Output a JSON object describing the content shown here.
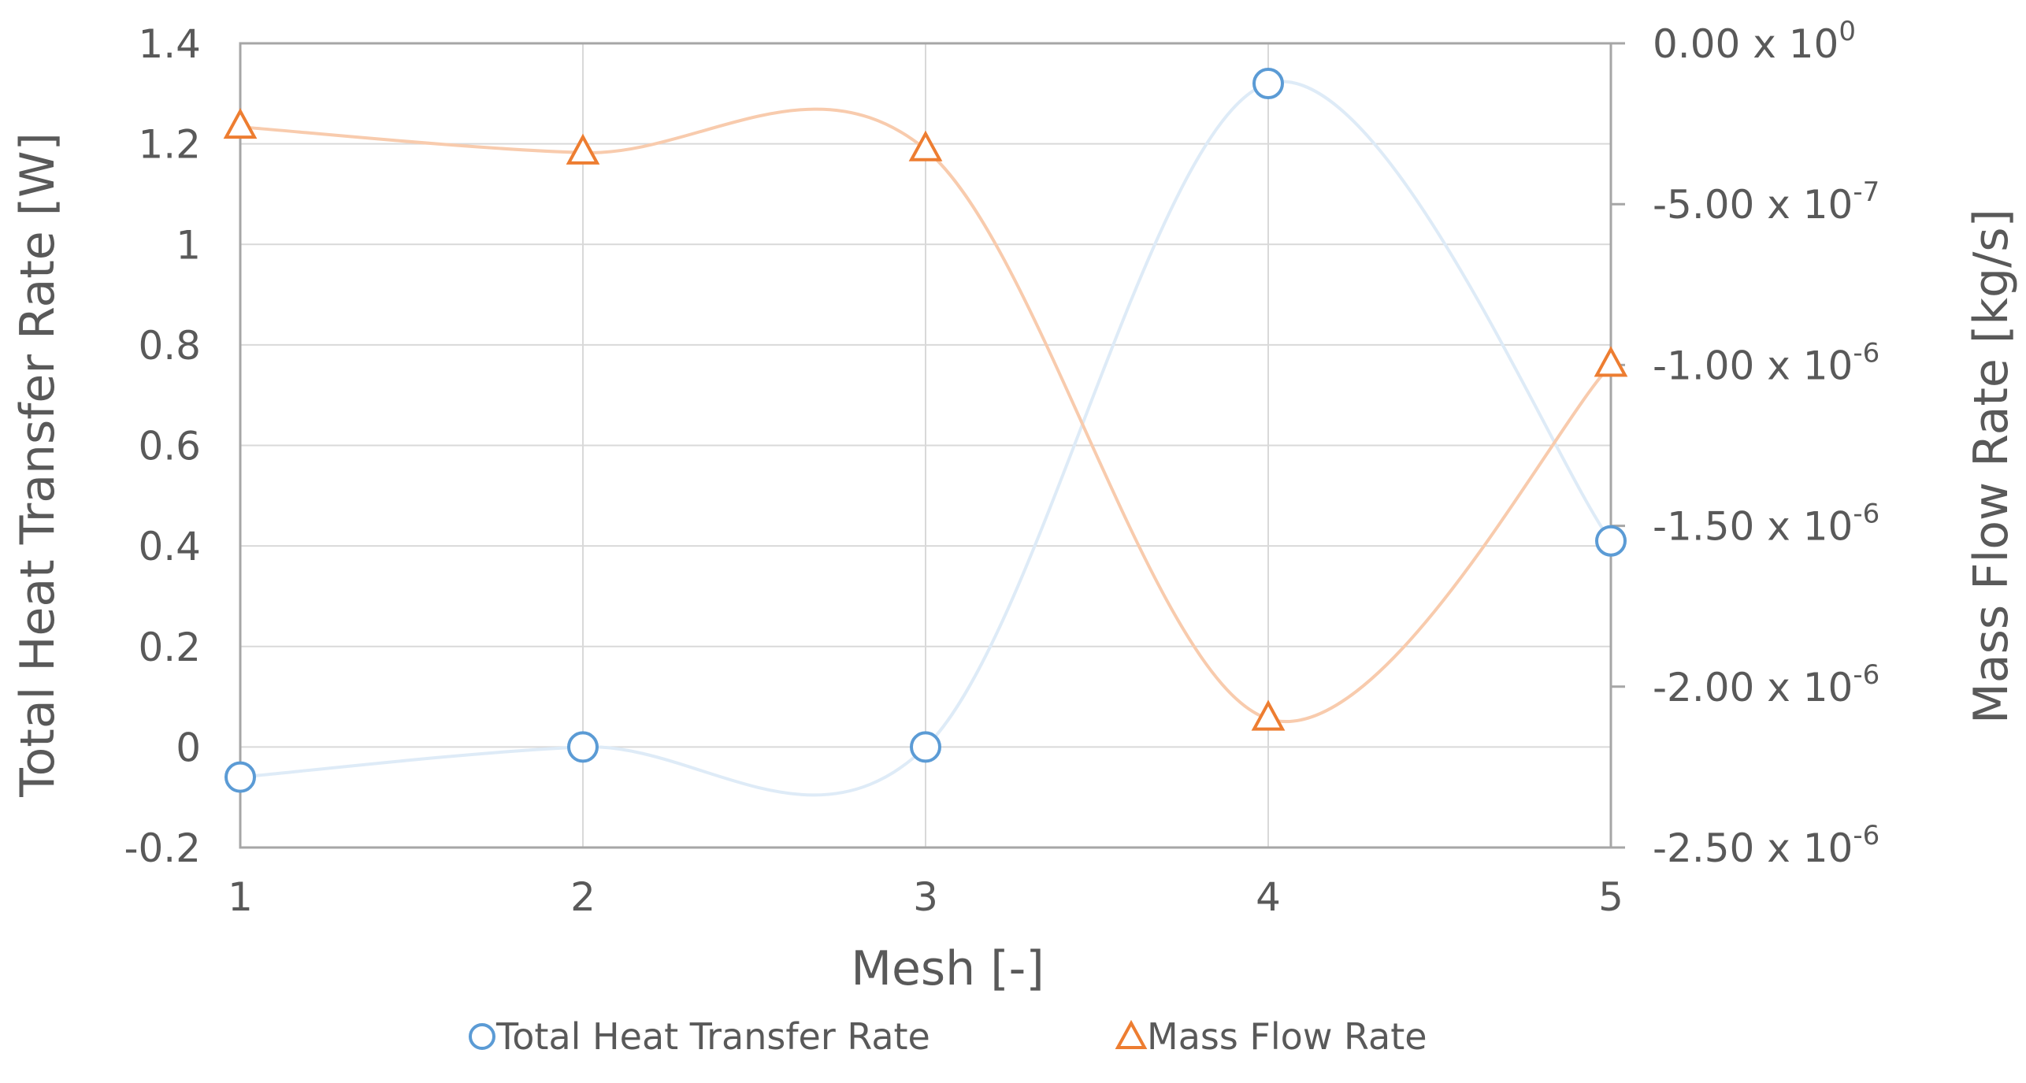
{
  "chart_data": {
    "type": "line",
    "x": [
      1,
      2,
      3,
      4,
      5
    ],
    "x_ticks": [
      "1",
      "2",
      "3",
      "4",
      "5"
    ],
    "xlabel": "Mesh [-]",
    "xlim": [
      1,
      5
    ],
    "series": [
      {
        "name": "Total Heat Transfer Rate",
        "axis": "left",
        "marker": "circle",
        "values": [
          -0.06,
          0.0,
          0.0,
          1.32,
          0.41
        ],
        "color": "#5B9BD5",
        "line_color": "#DEEBF7"
      },
      {
        "name": "Mass Flow Rate",
        "axis": "right",
        "marker": "triangle",
        "values": [
          -2.6e-07,
          -3.4e-07,
          -3.3e-07,
          -2.1e-06,
          -1e-06
        ],
        "color": "#ED7D31",
        "line_color": "#F8CBAD"
      }
    ],
    "y_left": {
      "label": "Total Heat Transfer Rate [W]",
      "ylim": [
        -0.2,
        1.4
      ],
      "ticks": [
        -0.2,
        0,
        0.2,
        0.4,
        0.6,
        0.8,
        1,
        1.2,
        1.4
      ],
      "tick_labels": [
        "-0.2",
        "0",
        "0.2",
        "0.4",
        "0.6",
        "0.8",
        "1",
        "1.2",
        "1.4"
      ]
    },
    "y_right": {
      "label": "Mass Flow Rate [kg/s]",
      "ylim": [
        -2.5e-06,
        0
      ],
      "ticks": [
        0,
        -5e-07,
        -1e-06,
        -1.5e-06,
        -2e-06,
        -2.5e-06
      ],
      "tick_mantissas": [
        "0.00",
        "-5.00",
        "-1.00",
        "-1.50",
        "-2.00",
        "-2.50"
      ],
      "tick_exponents": [
        "0",
        "-7",
        "-6",
        "-6",
        "-6",
        "-6"
      ],
      "tick_multiplier": "x 10"
    },
    "grid": true,
    "legend_position": "bottom"
  }
}
